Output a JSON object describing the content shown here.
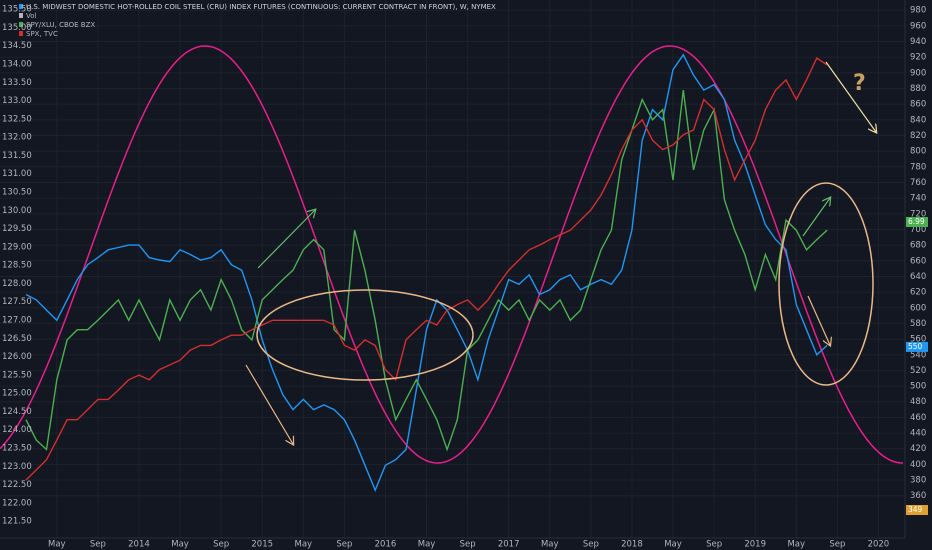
{
  "chart_data": {
    "type": "line",
    "header": [
      "U.S. MIDWEST DOMESTIC HOT-ROLLED COIL STEEL (CRU) INDEX FUTURES (CONTINUOUS: CURRENT CONTRACT IN FRONT), W, NYMEX",
      "Vol",
      "SPY/XLU, CBOE BZX",
      "SPX, TVC"
    ],
    "categories": [
      null,
      null,
      null,
      "May",
      null,
      null,
      null,
      "Sep",
      null,
      null,
      null,
      "2014",
      null,
      null,
      null,
      "May",
      null,
      null,
      null,
      "Sep",
      null,
      null,
      null,
      "2015",
      null,
      null,
      null,
      "May",
      null,
      null,
      null,
      "Sep",
      null,
      null,
      null,
      "2016",
      null,
      null,
      null,
      "May",
      null,
      null,
      null,
      "Sep",
      null,
      null,
      null,
      "2017",
      null,
      null,
      null,
      "May",
      null,
      null,
      null,
      "Sep",
      null,
      null,
      null,
      "2018",
      null,
      null,
      null,
      "May",
      null,
      null,
      null,
      "Sep",
      null,
      null,
      null,
      "2019",
      null,
      null,
      null,
      "May",
      null,
      null,
      null,
      "Sep",
      null,
      null,
      null,
      "2020",
      null
    ],
    "series": [
      {
        "color": "#2196f3",
        "axis": "y2",
        "values": [
          617,
          610,
          597,
          584,
          610,
          636,
          655,
          664,
          674,
          677,
          680,
          680,
          664,
          661,
          659,
          674,
          668,
          661,
          664,
          674,
          655,
          648,
          610,
          559,
          521,
          489,
          470,
          483,
          470,
          476,
          470,
          457,
          431,
          399,
          367,
          399,
          406,
          419,
          495,
          572,
          610,
          597,
          572,
          546,
          508,
          559,
          597,
          636,
          630,
          642,
          617,
          623,
          636,
          642,
          623,
          630,
          636,
          630,
          648,
          699,
          814,
          853,
          840,
          904,
          923,
          897,
          878,
          885,
          866,
          814,
          783,
          744,
          706,
          687,
          674,
          604,
          572,
          540,
          552,
          null,
          null,
          null,
          null,
          null,
          null
        ]
      },
      {
        "color": "#4caf50",
        "axis": "y2",
        "values": [
          457,
          431,
          419,
          508,
          559,
          572,
          572,
          584,
          597,
          610,
          584,
          610,
          584,
          559,
          610,
          584,
          610,
          623,
          597,
          636,
          610,
          572,
          559,
          610,
          623,
          636,
          648,
          674,
          687,
          674,
          572,
          559,
          699,
          648,
          584,
          508,
          457,
          483,
          508,
          483,
          457,
          419,
          457,
          546,
          559,
          584,
          610,
          597,
          610,
          584,
          610,
          597,
          610,
          584,
          597,
          636,
          674,
          699,
          789,
          827,
          866,
          840,
          853,
          763,
          878,
          776,
          827,
          853,
          738,
          699,
          668,
          623,
          668,
          636,
          712,
          699,
          674,
          687,
          699,
          null,
          null,
          null,
          null,
          null,
          null
        ]
      },
      {
        "color": "#d32f2f",
        "axis": "y2",
        "values": [
          380,
          393,
          406,
          431,
          457,
          457,
          470,
          483,
          483,
          495,
          508,
          514,
          508,
          521,
          527,
          533,
          546,
          552,
          552,
          559,
          565,
          565,
          572,
          578,
          584,
          584,
          584,
          584,
          584,
          584,
          578,
          552,
          546,
          559,
          552,
          521,
          508,
          559,
          572,
          584,
          578,
          597,
          604,
          610,
          597,
          610,
          630,
          648,
          661,
          674,
          680,
          687,
          693,
          699,
          712,
          725,
          744,
          770,
          802,
          827,
          840,
          814,
          802,
          808,
          821,
          827,
          866,
          853,
          802,
          763,
          789,
          814,
          853,
          878,
          891,
          866,
          891,
          919,
          910,
          null,
          null,
          null,
          null,
          null,
          null
        ]
      }
    ],
    "ylim": [
      121.04,
      135.75
    ],
    "yticks": [
      {
        "value": 121.5,
        "label": "121.50"
      },
      {
        "value": 122,
        "label": "122.00"
      },
      {
        "value": 122.5,
        "label": "122.50"
      },
      {
        "value": 123,
        "label": "123.00"
      },
      {
        "value": 123.5,
        "label": "123.50"
      },
      {
        "value": 124,
        "label": "124.00"
      },
      {
        "value": 124.5,
        "label": "124.50"
      },
      {
        "value": 125,
        "label": "125.00"
      },
      {
        "value": 125.5,
        "label": "125.50"
      },
      {
        "value": 126,
        "label": "126.00"
      },
      {
        "value": 126.5,
        "label": "126.50"
      },
      {
        "value": 127,
        "label": "127.00"
      },
      {
        "value": 127.5,
        "label": "127.50"
      },
      {
        "value": 128,
        "label": "128.00"
      },
      {
        "value": 128.5,
        "label": "128.50"
      },
      {
        "value": 129,
        "label": "129.00"
      },
      {
        "value": 129.5,
        "label": "129.50"
      },
      {
        "value": 130,
        "label": "130.00"
      },
      {
        "value": 130.5,
        "label": "130.50"
      },
      {
        "value": 131,
        "label": "131.00"
      },
      {
        "value": 131.5,
        "label": "131.50"
      },
      {
        "value": 132,
        "label": "132.00"
      },
      {
        "value": 132.5,
        "label": "132.50"
      },
      {
        "value": 133,
        "label": "133.00"
      },
      {
        "value": 133.5,
        "label": "133.50"
      },
      {
        "value": 134,
        "label": "134.00"
      },
      {
        "value": 134.5,
        "label": "134.50"
      },
      {
        "value": 135,
        "label": "135.00"
      },
      {
        "value": 135.5,
        "label": "135.50"
      }
    ],
    "y2lim": [
      306,
      993
    ],
    "y2ticks": [
      360,
      380,
      400,
      420,
      440,
      460,
      480,
      500,
      520,
      540,
      560,
      580,
      600,
      620,
      640,
      660,
      680,
      700,
      720,
      740,
      760,
      780,
      800,
      820,
      840,
      860,
      880,
      900,
      920,
      940,
      960,
      980
    ],
    "grid": true,
    "price_tags": [
      {
        "label": "550",
        "color": "#2196f3"
      },
      {
        "label": "6.99",
        "color": "#4caf50"
      },
      {
        "label": "349",
        "color": "#e0a030"
      }
    ],
    "annotation": "?"
  }
}
